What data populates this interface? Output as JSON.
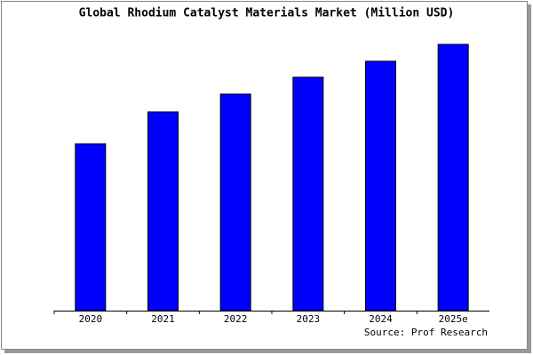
{
  "chart_data": {
    "type": "bar",
    "title": "Global Rhodium Catalyst Materials Market (Million USD)",
    "categories": [
      "2020",
      "2021",
      "2022",
      "2023",
      "2024",
      "2025e"
    ],
    "values": [
      188,
      224,
      244,
      263,
      281,
      300
    ],
    "color": "#0000ff",
    "ylim": [
      0,
      300
    ],
    "source": "Source: Prof Research"
  }
}
